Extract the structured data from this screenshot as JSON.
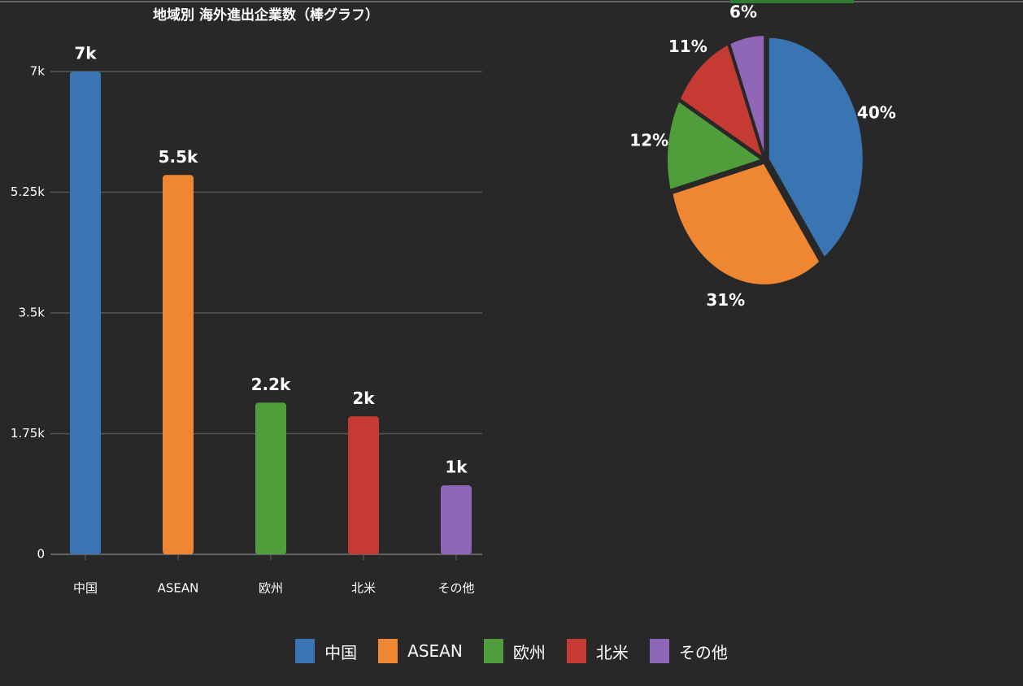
{
  "chart_data": [
    {
      "type": "bar",
      "title": "地域別 海外進出企業数（棒グラフ）",
      "categories": [
        "中国",
        "ASEAN",
        "欧州",
        "北米",
        "その他"
      ],
      "values": [
        7000,
        5500,
        2200,
        2000,
        1000
      ],
      "value_labels": [
        "7k",
        "5.5k",
        "2.2k",
        "2k",
        "1k"
      ],
      "colors": [
        "#3a75b3",
        "#ee8632",
        "#4f9e3b",
        "#c53a33",
        "#9067b8"
      ],
      "ylim": [
        0,
        7000
      ],
      "yticks": [
        0,
        {
          "value": 1750,
          "label": "1.75k"
        },
        {
          "value": 3500,
          "label": "3.5k"
        },
        {
          "value": 5250,
          "label": "5.25k"
        },
        {
          "value": 7000,
          "label": "7k"
        }
      ],
      "grid": true
    },
    {
      "type": "pie",
      "categories": [
        "中国",
        "ASEAN",
        "欧州",
        "北米",
        "その他"
      ],
      "values": [
        40,
        31,
        12,
        11,
        6
      ],
      "value_labels": [
        "40%",
        "31%",
        "12%",
        "11%",
        "6%"
      ],
      "colors": [
        "#3a75b3",
        "#ee8632",
        "#4f9e3b",
        "#c53a33",
        "#9067b8"
      ],
      "legend": "bottom"
    }
  ]
}
